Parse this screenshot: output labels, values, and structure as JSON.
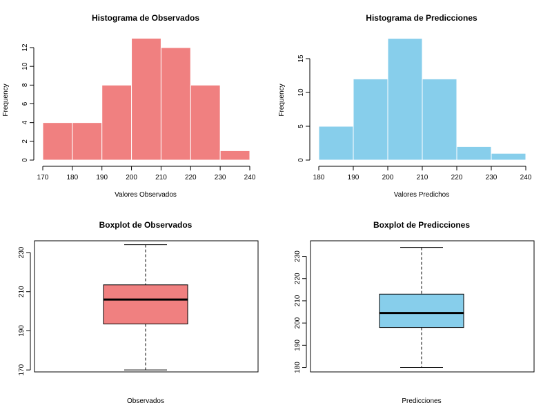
{
  "colors": {
    "observados": "#f08080",
    "predicciones": "#87ceeb"
  },
  "chart_data": [
    {
      "type": "bar",
      "subtype": "histogram",
      "title": "Histograma de Observados",
      "xlabel": "Valores Observados",
      "ylabel": "Frequency",
      "bins": [
        [
          170,
          180
        ],
        [
          180,
          190
        ],
        [
          190,
          200
        ],
        [
          200,
          210
        ],
        [
          210,
          220
        ],
        [
          220,
          230
        ],
        [
          230,
          240
        ]
      ],
      "values": [
        4,
        4,
        8,
        13,
        12,
        8,
        1
      ],
      "xlim": [
        170,
        240
      ],
      "ylim": [
        0,
        13
      ],
      "x_ticks": [
        "170",
        "180",
        "190",
        "200",
        "210",
        "220",
        "230",
        "240"
      ],
      "y_ticks": [
        "0",
        "2",
        "4",
        "6",
        "8",
        "10",
        "12"
      ],
      "color": "observados"
    },
    {
      "type": "bar",
      "subtype": "histogram",
      "title": "Histograma de Predicciones",
      "xlabel": "Valores Predichos",
      "ylabel": "Frequency",
      "bins": [
        [
          180,
          190
        ],
        [
          190,
          200
        ],
        [
          200,
          210
        ],
        [
          210,
          220
        ],
        [
          220,
          230
        ],
        [
          230,
          240
        ]
      ],
      "values": [
        5,
        12,
        18,
        12,
        2,
        1
      ],
      "xlim": [
        180,
        240
      ],
      "ylim": [
        0,
        18
      ],
      "x_ticks": [
        "180",
        "190",
        "200",
        "210",
        "220",
        "230",
        "240"
      ],
      "y_ticks": [
        "0",
        "5",
        "10",
        "15"
      ],
      "color": "predicciones"
    },
    {
      "type": "boxplot",
      "title": "Boxplot de Observados",
      "xlabel": "Observados",
      "stats": {
        "min": 170,
        "q1": 193.5,
        "median": 206,
        "q3": 213.5,
        "max": 234
      },
      "ylim": [
        169,
        236
      ],
      "y_ticks": [
        "170",
        "190",
        "210",
        "230"
      ],
      "color": "observados"
    },
    {
      "type": "boxplot",
      "title": "Boxplot de Predicciones",
      "xlabel": "Predicciones",
      "stats": {
        "min": 180,
        "q1": 198,
        "median": 204.5,
        "q3": 213,
        "max": 234
      },
      "ylim": [
        178,
        237
      ],
      "y_ticks": [
        "180",
        "190",
        "200",
        "210",
        "220",
        "230"
      ],
      "color": "predicciones"
    }
  ]
}
